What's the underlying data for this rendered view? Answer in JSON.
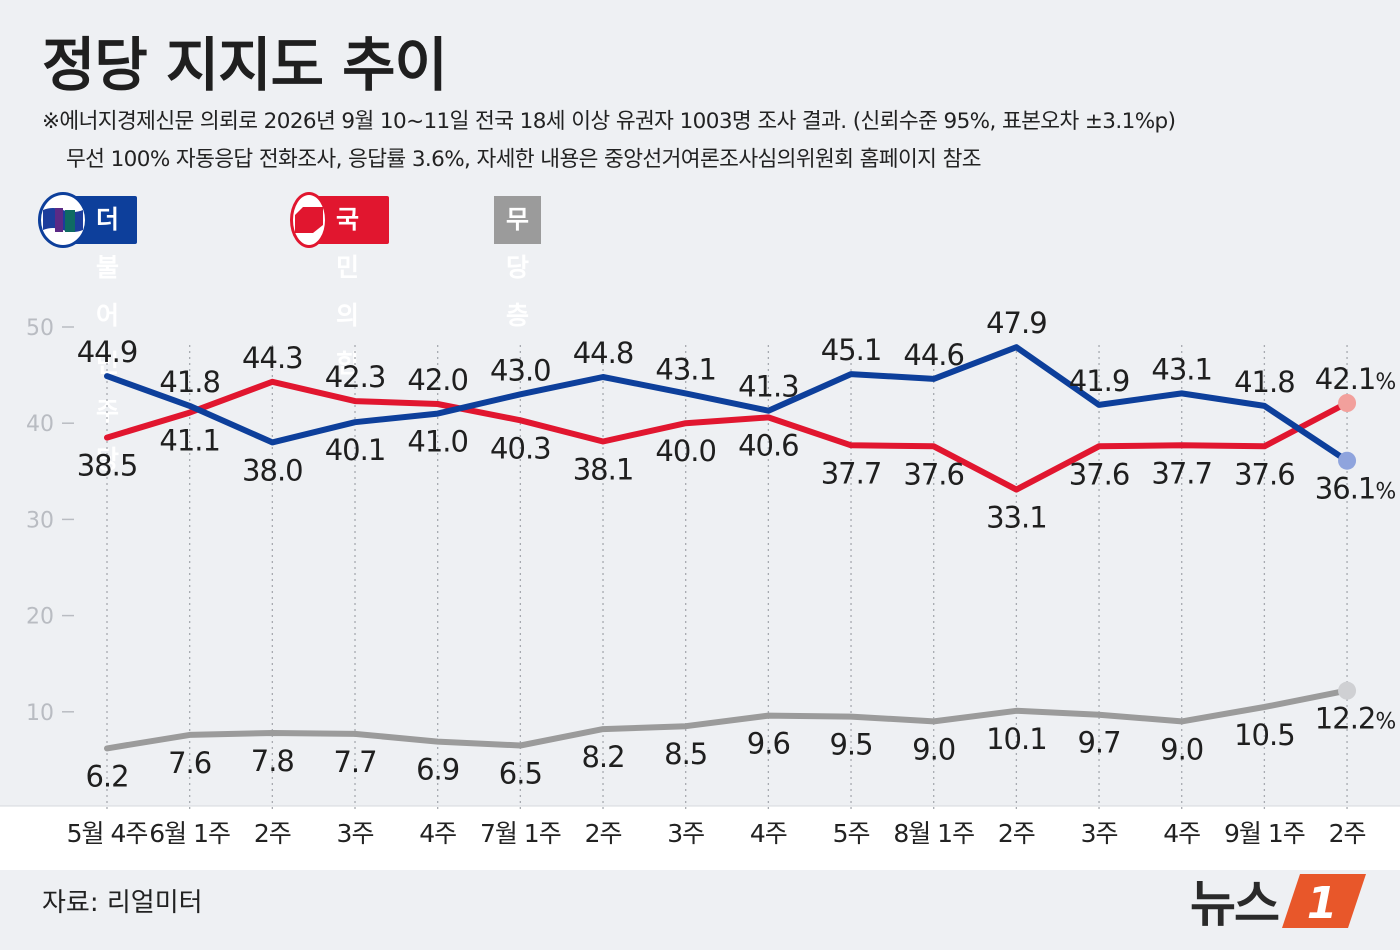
{
  "header": {
    "title": "정당 지지도 추이",
    "note_line1": "※에너지경제신문 의뢰로 2026년 9월 10~11일 전국 18세 이상 유권자 1003명 조사 결과. (신뢰수준 95%, 표본오차 ±3.1%p)",
    "note_line2": "무선 100% 자동응답 전화조사, 응답률 3.6%, 자세한 내용은 중앙선거여론조사심의위원회 홈페이지 참조"
  },
  "legend": [
    {
      "name": "더불어민주당",
      "color": "#0d3f9b"
    },
    {
      "name": "국민의힘",
      "color": "#e1162f"
    },
    {
      "name": "무당층",
      "color": "#9b9b9b"
    }
  ],
  "chart_data": {
    "type": "line",
    "categories": [
      "5월 4주",
      "6월 1주",
      "2주",
      "3주",
      "4주",
      "7월 1주",
      "2주",
      "3주",
      "4주",
      "5주",
      "8월 1주",
      "2주",
      "3주",
      "4주",
      "9월 1주",
      "2주"
    ],
    "series": [
      {
        "name": "더불어민주당",
        "color": "#0d3f9b",
        "values": [
          44.9,
          41.8,
          38.0,
          40.1,
          41.0,
          43.0,
          44.8,
          43.1,
          41.3,
          45.1,
          44.6,
          47.9,
          41.9,
          43.1,
          41.8,
          36.1
        ]
      },
      {
        "name": "국민의힘",
        "color": "#e1162f",
        "values": [
          38.5,
          41.1,
          44.3,
          42.3,
          42.0,
          40.3,
          38.1,
          40.0,
          40.6,
          37.7,
          37.6,
          33.1,
          37.6,
          37.7,
          37.6,
          42.1
        ]
      },
      {
        "name": "무당층",
        "color": "#9b9b9b",
        "values": [
          6.2,
          7.6,
          7.8,
          7.7,
          6.9,
          6.5,
          8.2,
          8.5,
          9.6,
          9.5,
          9.0,
          10.1,
          9.7,
          9.0,
          10.5,
          12.2
        ]
      }
    ],
    "labels": {
      "더불어민주당": [
        "44.9",
        "41.8",
        "38.0",
        "40.1",
        "41.0",
        "43.0",
        "44.8",
        "43.1",
        "41.3",
        "45.1",
        "44.6",
        "47.9",
        "41.9",
        "43.1",
        "41.8",
        "36.1"
      ],
      "국민의힘": [
        "38.5",
        "41.1",
        "44.3",
        "42.3",
        "42.0",
        "40.3",
        "38.1",
        "40.0",
        "40.6",
        "37.7",
        "37.6",
        "33.1",
        "37.6",
        "37.7",
        "37.6",
        "42.1"
      ],
      "무당층": [
        "6.2",
        "7.6",
        "7.8",
        "7.7",
        "6.9",
        "6.5",
        "8.2",
        "8.5",
        "9.6",
        "9.5",
        "9.0",
        "10.1",
        "9.7",
        "9.0",
        "10.5",
        "12.2"
      ]
    },
    "percent_suffix": "%",
    "ylim": [
      0,
      50
    ],
    "yticks": [
      "10",
      "20",
      "30",
      "40",
      "50"
    ],
    "ytick_values": [
      10,
      20,
      30,
      40,
      50
    ],
    "grid": "vertical dotted",
    "legend_position": "top-left"
  },
  "footer": {
    "source": "자료: 리얼미터",
    "logo_text": "뉴스",
    "logo_mark": "1"
  }
}
